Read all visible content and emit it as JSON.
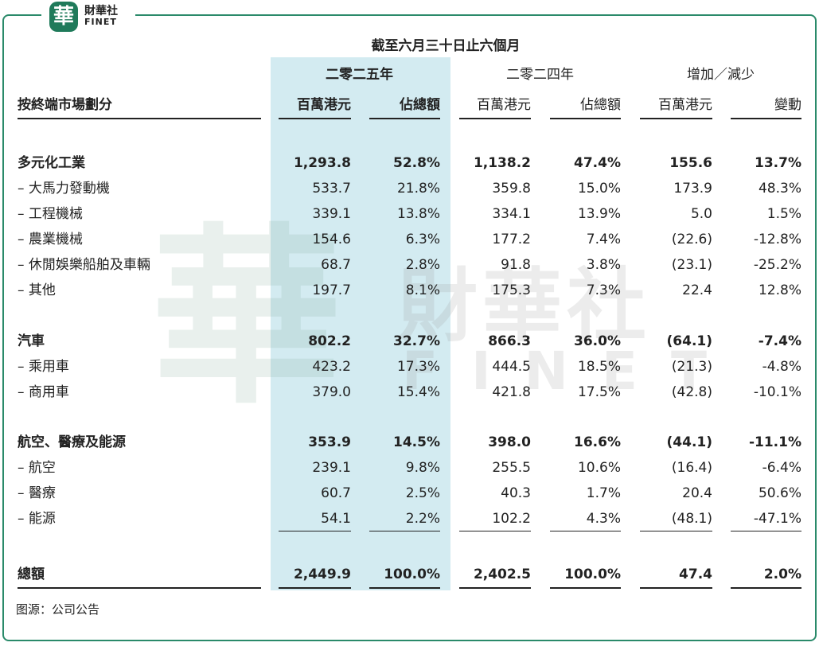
{
  "logo": {
    "mark": "華",
    "name": "財華社",
    "sub": "FINET"
  },
  "watermark": {
    "mark": "華",
    "name": "財華社",
    "sub": "FINET"
  },
  "table": {
    "period": "截至六月三十日止六個月",
    "groups": [
      "二零二五年",
      "二零二四年",
      "增加／減少"
    ],
    "header": [
      "按終端市場劃分",
      "百萬港元",
      "佔總額",
      "百萬港元",
      "佔總額",
      "百萬港元",
      "變動"
    ],
    "sections": [
      {
        "row": [
          "多元化工業",
          "1,293.8",
          "52.8%",
          "1,138.2",
          "47.4%",
          "155.6",
          "13.7%"
        ],
        "items": [
          [
            "– 大馬力發動機",
            "533.7",
            "21.8%",
            "359.8",
            "15.0%",
            "173.9",
            "48.3%"
          ],
          [
            "– 工程機械",
            "339.1",
            "13.8%",
            "334.1",
            "13.9%",
            "5.0",
            "1.5%"
          ],
          [
            "– 農業機械",
            "154.6",
            "6.3%",
            "177.2",
            "7.4%",
            "(22.6)",
            "-12.8%"
          ],
          [
            "– 休閒娛樂船舶及車輛",
            "68.7",
            "2.8%",
            "91.8",
            "3.8%",
            "(23.1)",
            "-25.2%"
          ],
          [
            "– 其他",
            "197.7",
            "8.1%",
            "175.3",
            "7.3%",
            "22.4",
            "12.8%"
          ]
        ]
      },
      {
        "row": [
          "汽車",
          "802.2",
          "32.7%",
          "866.3",
          "36.0%",
          "(64.1)",
          "-7.4%"
        ],
        "items": [
          [
            "– 乘用車",
            "423.2",
            "17.3%",
            "444.5",
            "18.5%",
            "(21.3)",
            "-4.8%"
          ],
          [
            "– 商用車",
            "379.0",
            "15.4%",
            "421.8",
            "17.5%",
            "(42.8)",
            "-10.1%"
          ]
        ]
      },
      {
        "row": [
          "航空、醫療及能源",
          "353.9",
          "14.5%",
          "398.0",
          "16.6%",
          "(44.1)",
          "-11.1%"
        ],
        "items": [
          [
            "– 航空",
            "239.1",
            "9.8%",
            "255.5",
            "10.6%",
            "(16.4)",
            "-6.4%"
          ],
          [
            "– 醫療",
            "60.7",
            "2.5%",
            "40.3",
            "1.7%",
            "20.4",
            "50.6%"
          ],
          [
            "– 能源",
            "54.1",
            "2.2%",
            "102.2",
            "4.3%",
            "(48.1)",
            "-47.1%"
          ]
        ]
      }
    ],
    "total": [
      "總額",
      "2,449.9",
      "100.0%",
      "2,402.5",
      "100.0%",
      "47.4",
      "2.0%"
    ]
  },
  "source": "图源：公司公告"
}
